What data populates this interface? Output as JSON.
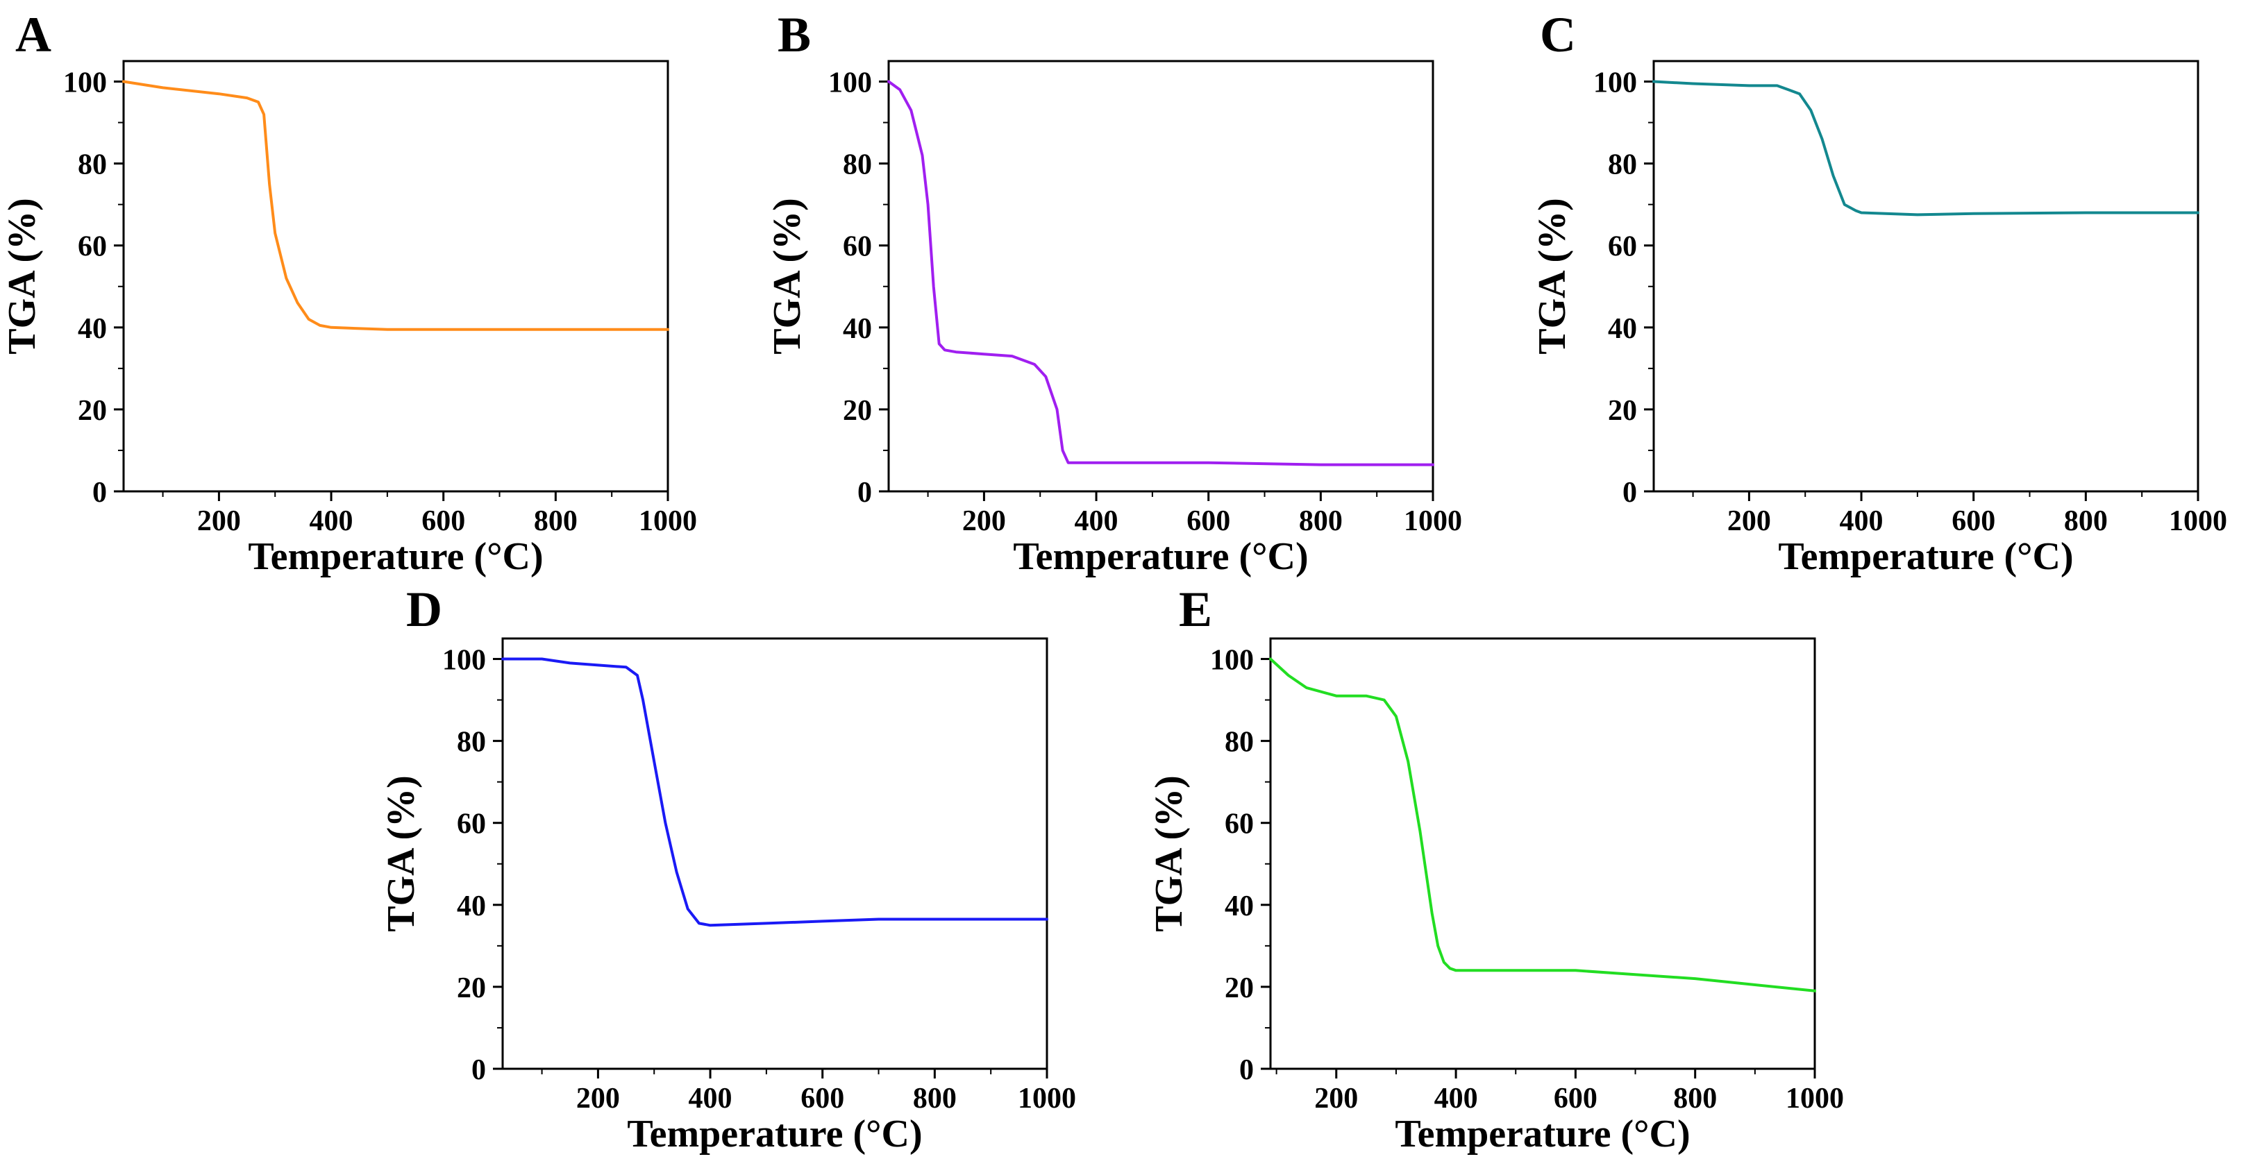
{
  "figure": {
    "panels": [
      "A",
      "B",
      "C",
      "D",
      "E"
    ]
  },
  "chart_data": [
    {
      "panel": "A",
      "type": "line",
      "title": "",
      "xlabel": "Temperature (°C)",
      "ylabel": "TGA (%)",
      "xlim": [
        30,
        1000
      ],
      "ylim": [
        0,
        105
      ],
      "xticks": [
        200,
        400,
        600,
        800,
        1000
      ],
      "yticks": [
        0,
        20,
        40,
        60,
        80,
        100
      ],
      "color": "#ff8c1a",
      "series": [
        {
          "name": "A",
          "x": [
            30,
            100,
            200,
            250,
            270,
            280,
            290,
            300,
            320,
            340,
            360,
            380,
            400,
            500,
            600,
            800,
            1000
          ],
          "y": [
            100,
            98.5,
            97,
            96,
            95,
            92,
            75,
            63,
            52,
            46,
            42,
            40.5,
            40,
            39.5,
            39.5,
            39.5,
            39.5
          ]
        }
      ]
    },
    {
      "panel": "B",
      "type": "line",
      "title": "",
      "xlabel": "Temperature (°C)",
      "ylabel": "TGA (%)",
      "xlim": [
        30,
        1000
      ],
      "ylim": [
        0,
        105
      ],
      "xticks": [
        200,
        400,
        600,
        800,
        1000
      ],
      "yticks": [
        0,
        20,
        40,
        60,
        80,
        100
      ],
      "color": "#a01ff0",
      "series": [
        {
          "name": "B",
          "x": [
            30,
            50,
            70,
            90,
            100,
            110,
            120,
            130,
            150,
            200,
            250,
            290,
            310,
            330,
            340,
            350,
            400,
            600,
            800,
            1000
          ],
          "y": [
            100,
            98,
            93,
            82,
            70,
            50,
            36,
            34.5,
            34,
            33.5,
            33,
            31,
            28,
            20,
            10,
            7,
            7,
            7,
            6.5,
            6.5
          ]
        }
      ]
    },
    {
      "panel": "C",
      "type": "line",
      "title": "",
      "xlabel": "Temperature (°C)",
      "ylabel": "TGA (%)",
      "xlim": [
        30,
        1000
      ],
      "ylim": [
        0,
        105
      ],
      "xticks": [
        200,
        400,
        600,
        800,
        1000
      ],
      "yticks": [
        0,
        20,
        40,
        60,
        80,
        100
      ],
      "color": "#13888f",
      "series": [
        {
          "name": "C",
          "x": [
            30,
            100,
            200,
            250,
            270,
            290,
            310,
            330,
            350,
            370,
            390,
            400,
            500,
            600,
            800,
            1000
          ],
          "y": [
            100,
            99.5,
            99,
            99,
            98,
            97,
            93,
            86,
            77,
            70,
            68.5,
            68,
            67.5,
            67.8,
            68,
            68
          ]
        }
      ]
    },
    {
      "panel": "D",
      "type": "line",
      "title": "",
      "xlabel": "Temperature (°C)",
      "ylabel": "TGA (%)",
      "xlim": [
        30,
        1000
      ],
      "ylim": [
        0,
        105
      ],
      "xticks": [
        200,
        400,
        600,
        800,
        1000
      ],
      "yticks": [
        0,
        20,
        40,
        60,
        80,
        100
      ],
      "color": "#1a1af5",
      "series": [
        {
          "name": "D",
          "x": [
            30,
            100,
            150,
            200,
            250,
            270,
            280,
            300,
            320,
            340,
            360,
            380,
            400,
            500,
            600,
            700,
            800,
            1000
          ],
          "y": [
            100,
            100,
            99,
            98.5,
            98,
            96,
            90,
            75,
            60,
            48,
            39,
            35.5,
            35,
            35.5,
            36,
            36.5,
            36.5,
            36.5
          ]
        }
      ]
    },
    {
      "panel": "E",
      "type": "line",
      "title": "",
      "xlabel": "Temperature (°C)",
      "ylabel": "TGA (%)",
      "xlim": [
        90,
        1000
      ],
      "ylim": [
        0,
        105
      ],
      "xticks": [
        200,
        400,
        600,
        800,
        1000
      ],
      "yticks": [
        0,
        20,
        40,
        60,
        80,
        100
      ],
      "color": "#22dd22",
      "series": [
        {
          "name": "E",
          "x": [
            90,
            120,
            150,
            200,
            250,
            280,
            300,
            320,
            340,
            360,
            370,
            380,
            390,
            400,
            500,
            600,
            700,
            800,
            900,
            1000
          ],
          "y": [
            100,
            96,
            93,
            91,
            91,
            90,
            86,
            75,
            58,
            38,
            30,
            26,
            24.5,
            24,
            24,
            24,
            23,
            22,
            20.5,
            19
          ]
        }
      ]
    }
  ]
}
